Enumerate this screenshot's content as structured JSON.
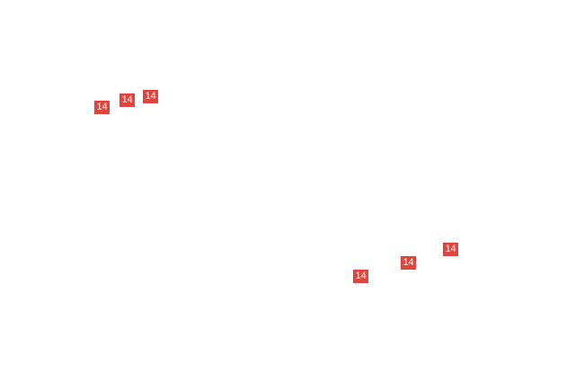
{
  "markers": [
    {
      "label": "14"
    },
    {
      "label": "14"
    },
    {
      "label": "14"
    },
    {
      "label": "14"
    },
    {
      "label": "14"
    },
    {
      "label": "14"
    }
  ]
}
